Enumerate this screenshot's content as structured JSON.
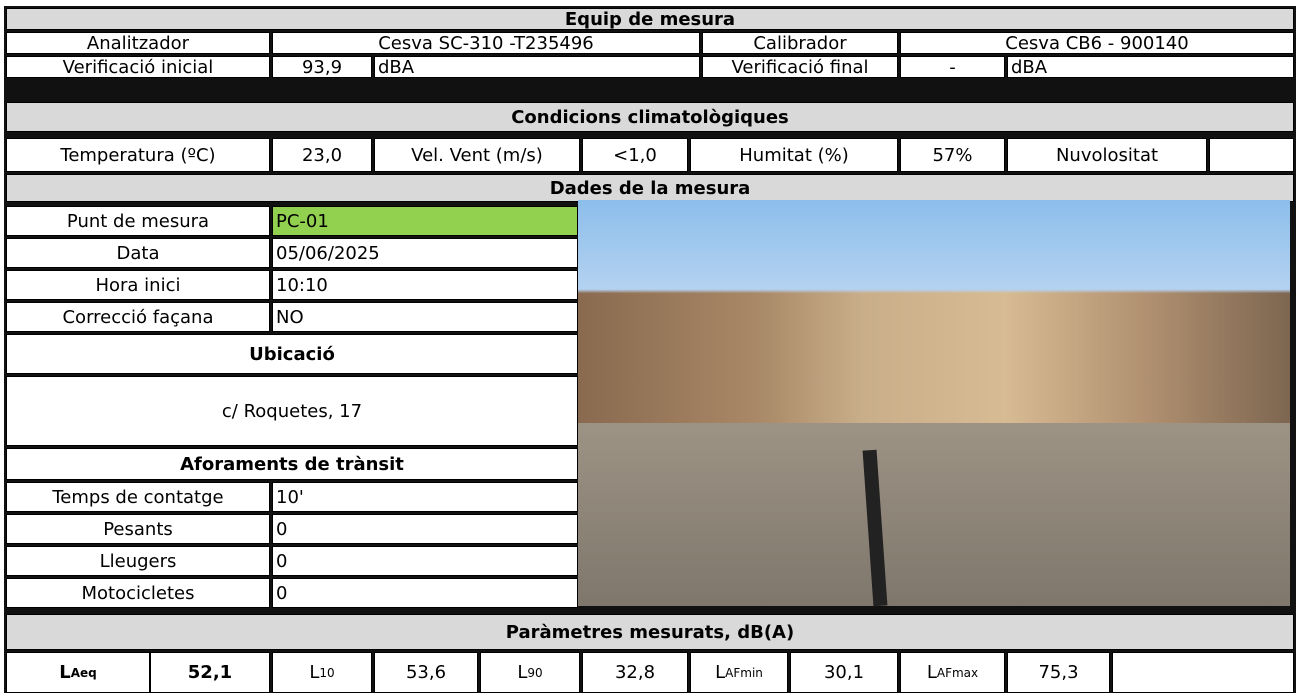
{
  "equipment": {
    "title": "Equip de mesura",
    "analyzer_label": "Analitzador",
    "analyzer": "Cesva SC-310 -T235496",
    "calibrator_label": "Calibrador",
    "calibrator": "Cesva CB6 - 900140",
    "initial_label": "Verificació inicial",
    "initial_value": "93,9",
    "initial_unit": "dBA",
    "final_label": "Verificació final",
    "final_value": "-",
    "final_unit": "dBA"
  },
  "climate": {
    "title": "Condicions climatològiques",
    "temperature_label": "Temperatura (ºC)",
    "temperature": "23,0",
    "wind_label": "Vel. Vent (m/s)",
    "wind": "<1,0",
    "humidity_label": "Humitat (%)",
    "humidity": "57%",
    "cloud_label": "Nuvolositat"
  },
  "measurement": {
    "title": "Dades de la mesura",
    "point_label": "Punt de mesura",
    "point": "PC-01",
    "date_label": "Data",
    "date": "05/06/2025",
    "start_label": "Hora inici",
    "start": "10:10",
    "facade_label": "Correcció façana",
    "facade": "NO",
    "location_title": "Ubicació",
    "location": "c/ Roquetes, 17"
  },
  "traffic": {
    "title": "Aforaments de trànsit",
    "rows": [
      [
        "Temps de contatge",
        "10'"
      ],
      [
        "Pesants",
        "0"
      ],
      [
        "Lleugers",
        "0"
      ],
      [
        "Motocicletes",
        "0"
      ]
    ]
  },
  "parameters": {
    "title": "Paràmetres mesurats, dB(A)",
    "items": [
      {
        "main": "L",
        "sub": "Aeq",
        "value": "52,1"
      },
      {
        "main": "L",
        "sub": "10",
        "value": "53,6"
      },
      {
        "main": "L",
        "sub": "90",
        "value": "32,8"
      },
      {
        "main": "L",
        "sub": "AFmin",
        "value": "30,1"
      },
      {
        "main": "L",
        "sub": "AFmax",
        "value": "75,3"
      }
    ]
  }
}
